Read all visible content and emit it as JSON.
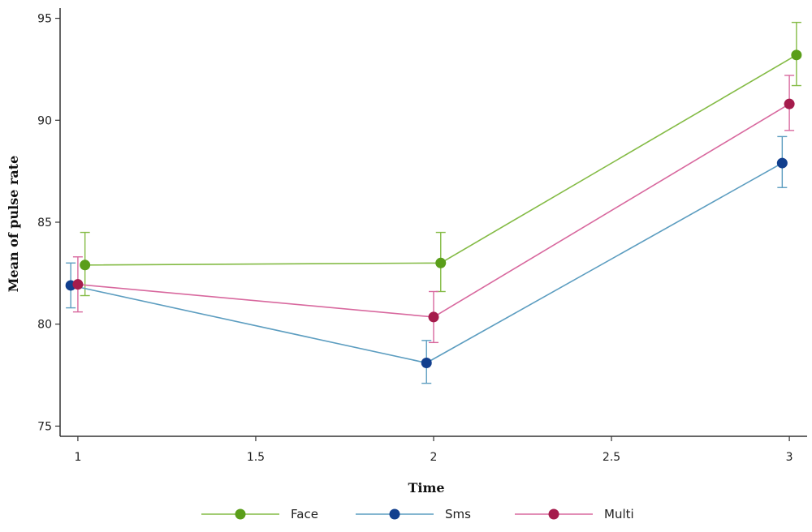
{
  "chart_data": {
    "type": "line",
    "title": "",
    "xlabel": "Time",
    "ylabel": "Mean of pulse rate",
    "xlim": [
      0.95,
      3.05
    ],
    "ylim": [
      74.5,
      95.5
    ],
    "x_ticks": [
      "1",
      "1.5",
      "2",
      "2.5",
      "3"
    ],
    "y_ticks": [
      "75",
      "80",
      "85",
      "90",
      "95"
    ],
    "grid": false,
    "legend_position": "bottom",
    "error_bars": true,
    "series": [
      {
        "name": "Face",
        "color": "#84bb45",
        "marker_color": "#5a9e1a",
        "x": [
          1.02,
          2.02,
          3.02
        ],
        "y": [
          82.9,
          83.0,
          93.2
        ],
        "err_low": [
          81.4,
          81.6,
          91.7
        ],
        "err_high": [
          84.5,
          84.5,
          94.8
        ]
      },
      {
        "name": "Sms",
        "color": "#5c9dc0",
        "marker_color": "#123f8e",
        "x": [
          0.98,
          1.98,
          2.98
        ],
        "y": [
          81.9,
          78.1,
          87.9
        ],
        "err_low": [
          80.8,
          77.1,
          86.7
        ],
        "err_high": [
          83.0,
          79.2,
          89.2
        ]
      },
      {
        "name": "Multi",
        "color": "#d8689e",
        "marker_color": "#a51c4c",
        "x": [
          1.0,
          2.0,
          3.0
        ],
        "y": [
          81.95,
          80.35,
          90.8
        ],
        "err_low": [
          80.6,
          79.1,
          89.5
        ],
        "err_high": [
          83.3,
          81.6,
          92.2
        ]
      }
    ]
  }
}
